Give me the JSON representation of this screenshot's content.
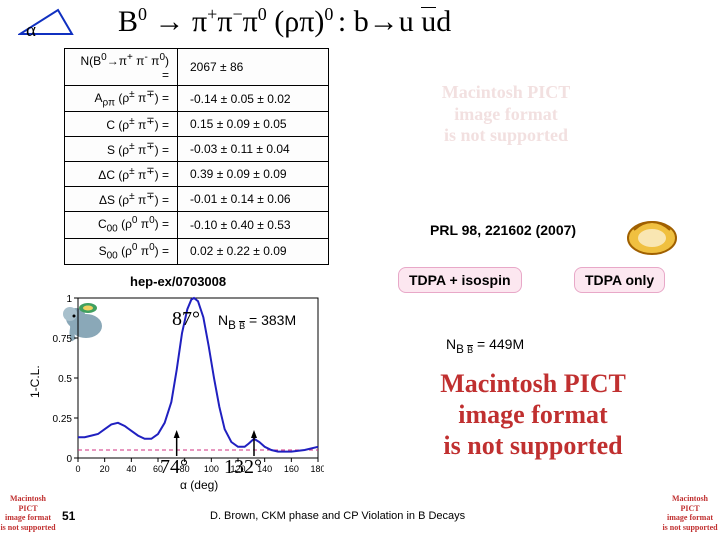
{
  "title": {
    "alpha": "α",
    "main_html": "B<sup>0</sup> → π<sup>+</sup>π<sup>−</sup>π<sup>0</sup>  (ρπ)<sup>0 </sup>: b→u <span class='overbar'>u</span>d"
  },
  "table": {
    "rows": [
      {
        "label_html": "N(B<sup>0</sup>→π<sup>+</sup> π<sup>-</sup> π<sup>0</sup>) =",
        "value": "2067 ± 86"
      },
      {
        "label_html": "A<sub>ρπ</sub> (ρ<sup>±</sup> π<sup>∓</sup>) =",
        "value": "-0.14 ± 0.05 ± 0.02"
      },
      {
        "label_html": "C (ρ<sup>±</sup> π<sup>∓</sup>) =",
        "value": "0.15 ± 0.09 ± 0.05"
      },
      {
        "label_html": "S (ρ<sup>±</sup> π<sup>∓</sup>) =",
        "value": "-0.03 ± 0.11 ± 0.04"
      },
      {
        "label_html": "ΔC (ρ<sup>±</sup> π<sup>∓</sup>) =",
        "value": "0.39 ± 0.09 ± 0.09"
      },
      {
        "label_html": "ΔS (ρ<sup>±</sup> π<sup>∓</sup>) =",
        "value": "-0.01 ± 0.14 ± 0.06"
      },
      {
        "label_html": "C<sub>00</sub> (ρ<sup>0</sup> π<sup>0</sup>) =",
        "value": "-0.10 ± 0.40 ± 0.53"
      },
      {
        "label_html": "S<sub>00</sub> (ρ<sup>0</sup> π<sup>0</sup>) =",
        "value": "0.02 ± 0.22 ± 0.09"
      }
    ]
  },
  "hep_ref": "hep-ex/0703008",
  "prl_ref": "PRL 98, 221602 (2007)",
  "callouts": {
    "left": "TDPA + isospin",
    "right": "TDPA only"
  },
  "nbb": {
    "left_html": "N<sub>B <span class='overbar' style='font-size:9px'>B</span></sub> = 383M",
    "right_html": "N<sub>B <span class='overbar' style='font-size:9px'>B</span></sub> = 449M"
  },
  "pict_err": "Macintosh PICT\nimage format\nis not supported",
  "chart": {
    "xlim": [
      0,
      180
    ],
    "ylim": [
      0,
      1.0
    ],
    "xticks": [
      0,
      20,
      40,
      60,
      80,
      100,
      120,
      140,
      160,
      180
    ],
    "yticks": [
      0,
      0.25,
      0.5,
      0.75,
      1.0
    ],
    "ytick_labels": [
      "0",
      "0.25",
      "0.5",
      "0.75",
      "1"
    ],
    "ylabel": "1-C.L.",
    "xlabel": "α (deg)",
    "dash_level": 0.05,
    "dash_color": "#d03080",
    "line_color": "#2020c0",
    "angle_labels": [
      {
        "text": "87°",
        "x": 87,
        "align": "center"
      },
      {
        "text": "74°",
        "x": 74,
        "align": "right"
      },
      {
        "text": "132°",
        "x": 132,
        "align": "left"
      }
    ],
    "points": [
      [
        0,
        0.13
      ],
      [
        5,
        0.13
      ],
      [
        10,
        0.14
      ],
      [
        15,
        0.15
      ],
      [
        20,
        0.18
      ],
      [
        25,
        0.21
      ],
      [
        30,
        0.22
      ],
      [
        35,
        0.2
      ],
      [
        40,
        0.17
      ],
      [
        45,
        0.14
      ],
      [
        50,
        0.12
      ],
      [
        55,
        0.12
      ],
      [
        60,
        0.15
      ],
      [
        65,
        0.22
      ],
      [
        70,
        0.35
      ],
      [
        74,
        0.55
      ],
      [
        78,
        0.78
      ],
      [
        82,
        0.93
      ],
      [
        85,
        0.99
      ],
      [
        87,
        1.0
      ],
      [
        90,
        0.98
      ],
      [
        94,
        0.88
      ],
      [
        98,
        0.7
      ],
      [
        102,
        0.5
      ],
      [
        106,
        0.32
      ],
      [
        110,
        0.18
      ],
      [
        115,
        0.1
      ],
      [
        120,
        0.07
      ],
      [
        125,
        0.07
      ],
      [
        128,
        0.09
      ],
      [
        132,
        0.12
      ],
      [
        136,
        0.1
      ],
      [
        140,
        0.07
      ],
      [
        145,
        0.05
      ],
      [
        150,
        0.04
      ],
      [
        160,
        0.04
      ],
      [
        170,
        0.05
      ],
      [
        180,
        0.07
      ]
    ]
  },
  "angle_overlay": {
    "a": "87°",
    "b": "74°",
    "c": "132°"
  },
  "page_num": "51",
  "footer": "D. Brown, CKM phase and CP Violation in B Decays",
  "colors": {
    "triangle": "#1030c0",
    "callout_bg": "#fce7f0",
    "err_red": "#c03030"
  }
}
